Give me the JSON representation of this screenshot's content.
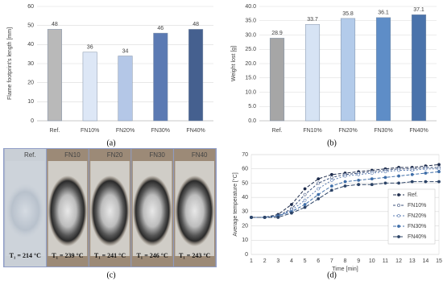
{
  "chart_data": [
    {
      "type": "bar",
      "caption": "(a)",
      "y_label": "Flame footprint's length [mm]",
      "categories": [
        "Ref.",
        "FN10%",
        "FN20%",
        "FN30%",
        "FN40%"
      ],
      "values": [
        48,
        36,
        34,
        46,
        48
      ],
      "colors": [
        "#b9b9b9",
        "#dde7f6",
        "#b4c7e7",
        "#5b7ab3",
        "#45608f"
      ],
      "ylim": [
        0,
        60
      ],
      "yticks": [
        0,
        10,
        20,
        30,
        40,
        50,
        60
      ],
      "grid": true
    },
    {
      "type": "bar",
      "caption": "(b)",
      "y_label": "Weight lost [g]",
      "categories": [
        "Ref.",
        "FN10%",
        "FN20%",
        "FN30%",
        "FN40%"
      ],
      "values": [
        28.9,
        33.7,
        35.8,
        36.1,
        37.1
      ],
      "colors": [
        "#a6a6a6",
        "#d6e3f4",
        "#b3cbea",
        "#5e8dc7",
        "#4a73ab"
      ],
      "ylim": [
        0,
        40
      ],
      "yticks": [
        {
          "value": 0,
          "label": "0.0"
        },
        {
          "value": 5,
          "label": "5.0"
        },
        {
          "value": 10,
          "label": "10.0"
        },
        {
          "value": 15,
          "label": "15.0"
        },
        {
          "value": 20,
          "label": "20.0"
        },
        {
          "value": 25,
          "label": "25.0"
        },
        {
          "value": 30,
          "label": "30.0"
        },
        {
          "value": 35,
          "label": "35.0"
        },
        {
          "value": 40,
          "label": "40.0"
        }
      ],
      "grid": true
    },
    {
      "type": "line",
      "caption": "(d)",
      "x_label": "Time [min]",
      "y_label": "Average temperature [°C]",
      "x": [
        1,
        2,
        3,
        4,
        5,
        6,
        7,
        8,
        9,
        10,
        11,
        12,
        13,
        14,
        15
      ],
      "series": [
        {
          "name": "Ref.",
          "color": "#1f2d4d",
          "values": [
            26,
            26,
            28,
            35,
            46,
            53,
            56,
            57,
            58,
            59,
            60,
            61,
            61,
            62,
            63
          ]
        },
        {
          "name": "FN10%",
          "color": "#3a4f7a",
          "values": [
            26,
            26,
            27,
            32,
            42,
            50,
            54,
            56,
            57,
            58,
            59,
            60,
            60,
            61,
            61
          ]
        },
        {
          "name": "FN20%",
          "color": "#5a7bb0",
          "values": [
            26,
            26,
            27,
            31,
            38,
            46,
            52,
            55,
            56,
            57,
            58,
            59,
            59,
            60,
            60
          ]
        },
        {
          "name": "FN30%",
          "color": "#3f6ea8",
          "values": [
            26,
            26,
            27,
            30,
            35,
            42,
            48,
            51,
            52,
            53,
            54,
            55,
            56,
            57,
            58
          ]
        },
        {
          "name": "FN40%",
          "color": "#2c4366",
          "values": [
            26,
            26,
            26,
            29,
            33,
            39,
            45,
            48,
            49,
            49,
            50,
            50,
            51,
            51,
            51
          ]
        }
      ],
      "xlim": [
        1,
        15
      ],
      "xticks": [
        1,
        2,
        3,
        4,
        5,
        6,
        7,
        8,
        9,
        10,
        11,
        12,
        13,
        14,
        15
      ],
      "ylim": [
        0,
        70
      ],
      "yticks": [
        0,
        10,
        20,
        30,
        40,
        50,
        60,
        70
      ],
      "grid": true,
      "legend": "right"
    }
  ],
  "photo": {
    "caption": "(c)",
    "samples": [
      {
        "label": "Ref.",
        "temperature": "T₁ = 214 °C"
      },
      {
        "label": "FN10",
        "temperature": "T₁ = 239 °C"
      },
      {
        "label": "FN20",
        "temperature": "T₁ = 241 °C"
      },
      {
        "label": "FN30",
        "temperature": "T₁ = 246 °C"
      },
      {
        "label": "FN40",
        "temperature": "T₁ = 243 °C"
      }
    ]
  }
}
